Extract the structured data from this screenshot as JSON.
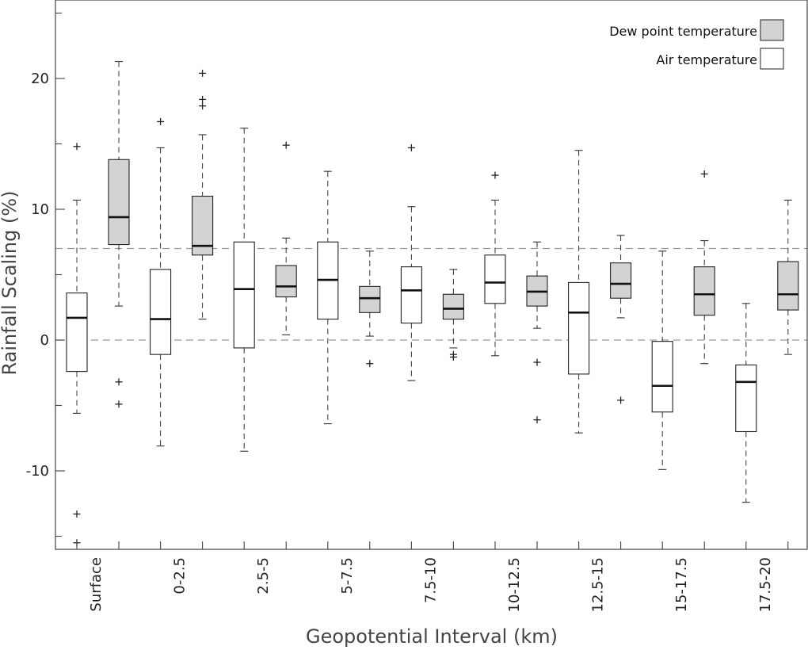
{
  "chart_data": {
    "type": "box",
    "xlabel": "Geopotential Interval (km)",
    "ylabel": "Rainfall Scaling (%)",
    "ylim": [
      -16,
      26
    ],
    "yticks": [
      -10,
      0,
      10,
      20
    ],
    "reference_lines": [
      0,
      7
    ],
    "legend": {
      "placement": "top-right"
    },
    "categories": [
      "Surface",
      "0-2.5",
      "2.5-5",
      "5-7.5",
      "7.5-10",
      "10-12.5",
      "12.5-15",
      "15-17.5",
      "17.5-20"
    ],
    "series": [
      {
        "name": "Air temperature",
        "color": "#ffffff",
        "boxes": [
          {
            "category": "Surface",
            "whisker_low": -5.6,
            "q1": -2.4,
            "median": 1.7,
            "q3": 3.6,
            "whisker_high": 10.7,
            "outliers": [
              14.8,
              -13.3,
              -15.5
            ]
          },
          {
            "category": "0-2.5",
            "whisker_low": -8.1,
            "q1": -1.1,
            "median": 1.6,
            "q3": 5.4,
            "whisker_high": 14.7,
            "outliers": [
              16.7
            ]
          },
          {
            "category": "2.5-5",
            "whisker_low": -8.5,
            "q1": -0.6,
            "median": 3.9,
            "q3": 7.5,
            "whisker_high": 16.2,
            "outliers": []
          },
          {
            "category": "5-7.5",
            "whisker_low": -6.4,
            "q1": 1.6,
            "median": 4.6,
            "q3": 7.5,
            "whisker_high": 12.9,
            "outliers": []
          },
          {
            "category": "7.5-10",
            "whisker_low": -3.1,
            "q1": 1.3,
            "median": 3.8,
            "q3": 5.6,
            "whisker_high": 10.2,
            "outliers": [
              14.7
            ]
          },
          {
            "category": "10-12.5",
            "whisker_low": -1.2,
            "q1": 2.8,
            "median": 4.4,
            "q3": 6.5,
            "whisker_high": 10.7,
            "outliers": [
              12.6
            ]
          },
          {
            "category": "12.5-15",
            "whisker_low": -7.1,
            "q1": -2.6,
            "median": 2.1,
            "q3": 4.4,
            "whisker_high": 14.5,
            "outliers": []
          },
          {
            "category": "15-17.5",
            "whisker_low": -9.9,
            "q1": -5.5,
            "median": -3.5,
            "q3": -0.1,
            "whisker_high": 6.8,
            "outliers": []
          },
          {
            "category": "17.5-20",
            "whisker_low": -12.4,
            "q1": -7.0,
            "median": -3.2,
            "q3": -1.9,
            "whisker_high": 2.8,
            "outliers": []
          }
        ]
      },
      {
        "name": "Dew point temperature",
        "color": "#d3d3d3",
        "boxes": [
          {
            "category": "Surface",
            "whisker_low": 2.6,
            "q1": 7.3,
            "median": 9.4,
            "q3": 13.8,
            "whisker_high": 21.3,
            "outliers": [
              -3.2,
              -4.9
            ]
          },
          {
            "category": "0-2.5",
            "whisker_low": 1.6,
            "q1": 6.5,
            "median": 7.2,
            "q3": 11.0,
            "whisker_high": 15.7,
            "outliers": [
              20.4,
              18.4,
              17.9
            ]
          },
          {
            "category": "2.5-5",
            "whisker_low": 0.4,
            "q1": 3.3,
            "median": 4.1,
            "q3": 5.7,
            "whisker_high": 7.8,
            "outliers": [
              14.9
            ]
          },
          {
            "category": "5-7.5",
            "whisker_low": 0.3,
            "q1": 2.1,
            "median": 3.2,
            "q3": 4.1,
            "whisker_high": 6.8,
            "outliers": [
              -1.8
            ]
          },
          {
            "category": "7.5-10",
            "whisker_low": -0.6,
            "q1": 1.6,
            "median": 2.4,
            "q3": 3.5,
            "whisker_high": 5.4,
            "outliers": [
              -1.1,
              -1.3
            ]
          },
          {
            "category": "10-12.5",
            "whisker_low": 0.9,
            "q1": 2.6,
            "median": 3.7,
            "q3": 4.9,
            "whisker_high": 7.5,
            "outliers": [
              -1.7,
              -6.1
            ]
          },
          {
            "category": "12.5-15",
            "whisker_low": 1.7,
            "q1": 3.2,
            "median": 4.3,
            "q3": 5.9,
            "whisker_high": 8.0,
            "outliers": [
              -4.6
            ]
          },
          {
            "category": "15-17.5",
            "whisker_low": -1.8,
            "q1": 1.9,
            "median": 3.5,
            "q3": 5.6,
            "whisker_high": 7.6,
            "outliers": [
              12.7
            ]
          },
          {
            "category": "17.5-20",
            "whisker_low": -1.1,
            "q1": 2.3,
            "median": 3.5,
            "q3": 6.0,
            "whisker_high": 10.7,
            "outliers": []
          }
        ]
      }
    ]
  }
}
